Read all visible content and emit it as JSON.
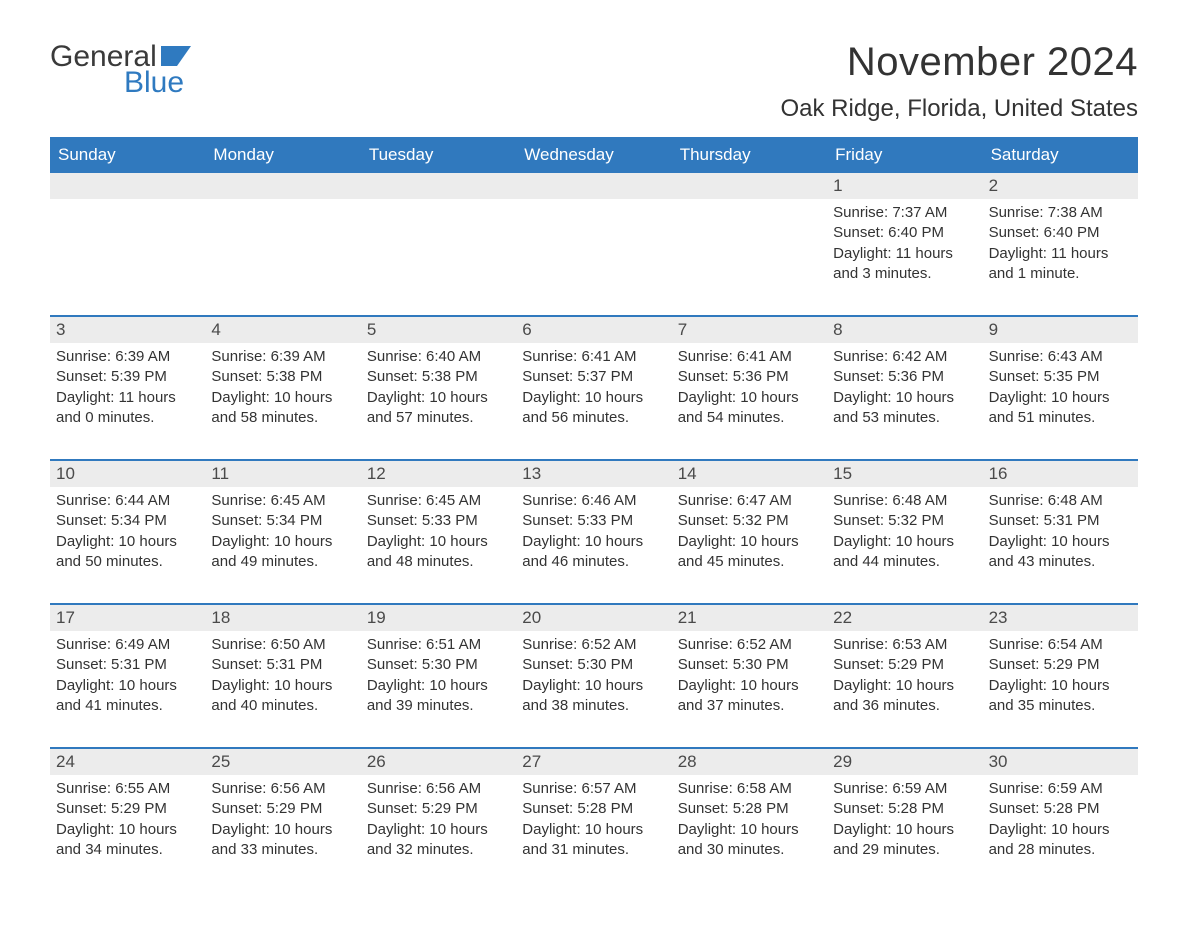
{
  "brand": {
    "part1": "General",
    "part2": "Blue",
    "flag_color": "#2f7ac0",
    "text_color": "#3a3a3a"
  },
  "title": "November 2024",
  "location": "Oak Ridge, Florida, United States",
  "colors": {
    "header_bg": "#3079be",
    "header_text": "#ffffff",
    "daynum_bg": "#ececec",
    "daynum_text": "#4a4a4a",
    "rule": "#3079be",
    "body_text": "#333333"
  },
  "daynames": [
    "Sunday",
    "Monday",
    "Tuesday",
    "Wednesday",
    "Thursday",
    "Friday",
    "Saturday"
  ],
  "weeks": [
    {
      "nums": [
        "",
        "",
        "",
        "",
        "",
        "1",
        "2"
      ],
      "cells": [
        null,
        null,
        null,
        null,
        null,
        {
          "sunrise": "7:37 AM",
          "sunset": "6:40 PM",
          "daylight": "11 hours and 3 minutes."
        },
        {
          "sunrise": "7:38 AM",
          "sunset": "6:40 PM",
          "daylight": "11 hours and 1 minute."
        }
      ]
    },
    {
      "nums": [
        "3",
        "4",
        "5",
        "6",
        "7",
        "8",
        "9"
      ],
      "cells": [
        {
          "sunrise": "6:39 AM",
          "sunset": "5:39 PM",
          "daylight": "11 hours and 0 minutes."
        },
        {
          "sunrise": "6:39 AM",
          "sunset": "5:38 PM",
          "daylight": "10 hours and 58 minutes."
        },
        {
          "sunrise": "6:40 AM",
          "sunset": "5:38 PM",
          "daylight": "10 hours and 57 minutes."
        },
        {
          "sunrise": "6:41 AM",
          "sunset": "5:37 PM",
          "daylight": "10 hours and 56 minutes."
        },
        {
          "sunrise": "6:41 AM",
          "sunset": "5:36 PM",
          "daylight": "10 hours and 54 minutes."
        },
        {
          "sunrise": "6:42 AM",
          "sunset": "5:36 PM",
          "daylight": "10 hours and 53 minutes."
        },
        {
          "sunrise": "6:43 AM",
          "sunset": "5:35 PM",
          "daylight": "10 hours and 51 minutes."
        }
      ]
    },
    {
      "nums": [
        "10",
        "11",
        "12",
        "13",
        "14",
        "15",
        "16"
      ],
      "cells": [
        {
          "sunrise": "6:44 AM",
          "sunset": "5:34 PM",
          "daylight": "10 hours and 50 minutes."
        },
        {
          "sunrise": "6:45 AM",
          "sunset": "5:34 PM",
          "daylight": "10 hours and 49 minutes."
        },
        {
          "sunrise": "6:45 AM",
          "sunset": "5:33 PM",
          "daylight": "10 hours and 48 minutes."
        },
        {
          "sunrise": "6:46 AM",
          "sunset": "5:33 PM",
          "daylight": "10 hours and 46 minutes."
        },
        {
          "sunrise": "6:47 AM",
          "sunset": "5:32 PM",
          "daylight": "10 hours and 45 minutes."
        },
        {
          "sunrise": "6:48 AM",
          "sunset": "5:32 PM",
          "daylight": "10 hours and 44 minutes."
        },
        {
          "sunrise": "6:48 AM",
          "sunset": "5:31 PM",
          "daylight": "10 hours and 43 minutes."
        }
      ]
    },
    {
      "nums": [
        "17",
        "18",
        "19",
        "20",
        "21",
        "22",
        "23"
      ],
      "cells": [
        {
          "sunrise": "6:49 AM",
          "sunset": "5:31 PM",
          "daylight": "10 hours and 41 minutes."
        },
        {
          "sunrise": "6:50 AM",
          "sunset": "5:31 PM",
          "daylight": "10 hours and 40 minutes."
        },
        {
          "sunrise": "6:51 AM",
          "sunset": "5:30 PM",
          "daylight": "10 hours and 39 minutes."
        },
        {
          "sunrise": "6:52 AM",
          "sunset": "5:30 PM",
          "daylight": "10 hours and 38 minutes."
        },
        {
          "sunrise": "6:52 AM",
          "sunset": "5:30 PM",
          "daylight": "10 hours and 37 minutes."
        },
        {
          "sunrise": "6:53 AM",
          "sunset": "5:29 PM",
          "daylight": "10 hours and 36 minutes."
        },
        {
          "sunrise": "6:54 AM",
          "sunset": "5:29 PM",
          "daylight": "10 hours and 35 minutes."
        }
      ]
    },
    {
      "nums": [
        "24",
        "25",
        "26",
        "27",
        "28",
        "29",
        "30"
      ],
      "cells": [
        {
          "sunrise": "6:55 AM",
          "sunset": "5:29 PM",
          "daylight": "10 hours and 34 minutes."
        },
        {
          "sunrise": "6:56 AM",
          "sunset": "5:29 PM",
          "daylight": "10 hours and 33 minutes."
        },
        {
          "sunrise": "6:56 AM",
          "sunset": "5:29 PM",
          "daylight": "10 hours and 32 minutes."
        },
        {
          "sunrise": "6:57 AM",
          "sunset": "5:28 PM",
          "daylight": "10 hours and 31 minutes."
        },
        {
          "sunrise": "6:58 AM",
          "sunset": "5:28 PM",
          "daylight": "10 hours and 30 minutes."
        },
        {
          "sunrise": "6:59 AM",
          "sunset": "5:28 PM",
          "daylight": "10 hours and 29 minutes."
        },
        {
          "sunrise": "6:59 AM",
          "sunset": "5:28 PM",
          "daylight": "10 hours and 28 minutes."
        }
      ]
    }
  ],
  "labels": {
    "sunrise": "Sunrise: ",
    "sunset": "Sunset: ",
    "daylight": "Daylight: "
  }
}
